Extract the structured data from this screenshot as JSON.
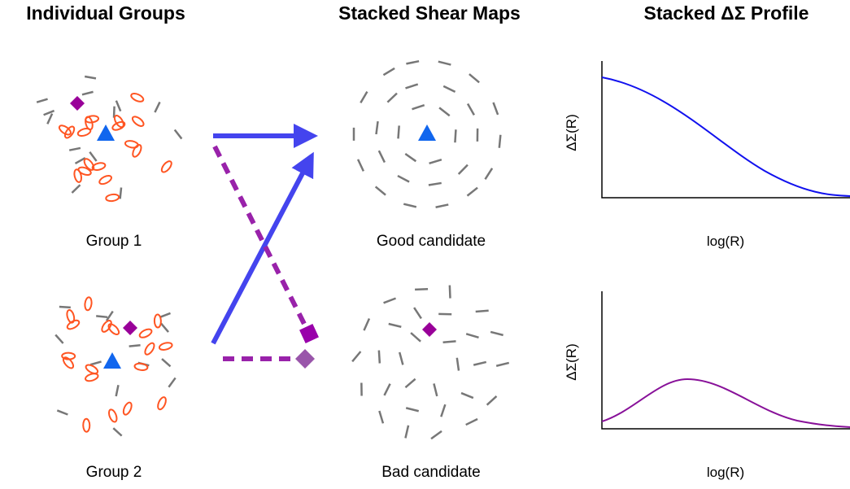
{
  "titles": [
    "Individual Groups",
    "Stacked Shear Maps",
    "Stacked ΔΣ Profile"
  ],
  "groups": [
    "Group 1",
    "Group 2"
  ],
  "candidates": [
    "Good candidate",
    "Bad candidate"
  ],
  "plots": [
    {
      "ylabel": "ΔΣ(R)",
      "xlabel": "log(R)"
    },
    {
      "ylabel": "ΔΣ(R)",
      "xlabel": "log(R)"
    }
  ]
}
